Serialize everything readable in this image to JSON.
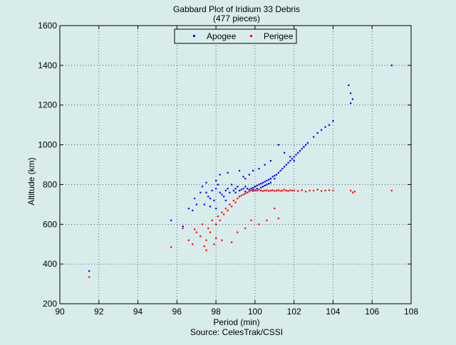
{
  "chart_data": {
    "type": "scatter",
    "title": "Gabbard Plot of Iridium 33 Debris",
    "subtitle": "(477 pieces)",
    "xlabel": "Period (min)",
    "ylabel": "Altitude (km)",
    "source": "Source: CelesTrak/CSSI",
    "xlim": [
      90,
      108
    ],
    "ylim": [
      200,
      1600
    ],
    "xticks": [
      90,
      92,
      94,
      96,
      98,
      100,
      102,
      104,
      106,
      108
    ],
    "yticks": [
      200,
      400,
      600,
      800,
      1000,
      1200,
      1400,
      1600
    ],
    "grid": true,
    "legend_position": "top-center",
    "series": [
      {
        "name": "Apogee",
        "color": "#0000ff",
        "x": [
          91.5,
          95.7,
          96.3,
          96.6,
          96.8,
          96.9,
          97.0,
          97.2,
          97.3,
          97.4,
          97.5,
          97.6,
          97.7,
          97.7,
          97.8,
          97.9,
          98.0,
          98.0,
          98.1,
          98.2,
          98.3,
          98.4,
          98.5,
          98.5,
          98.6,
          98.7,
          98.8,
          98.9,
          99.0,
          99.0,
          99.1,
          99.2,
          99.3,
          99.4,
          99.5,
          99.5,
          99.6,
          99.7,
          99.8,
          99.8,
          99.9,
          99.9,
          100.0,
          100.0,
          100.1,
          100.1,
          100.2,
          100.2,
          100.3,
          100.3,
          100.4,
          100.4,
          100.5,
          100.5,
          100.6,
          100.6,
          100.7,
          100.7,
          100.8,
          100.8,
          100.9,
          101.0,
          101.0,
          101.1,
          101.2,
          101.3,
          101.4,
          101.5,
          101.6,
          101.7,
          101.8,
          101.9,
          102.0,
          102.1,
          102.2,
          102.3,
          102.4,
          102.5,
          102.6,
          102.7,
          102.5,
          103.0,
          103.2,
          103.4,
          103.6,
          103.8,
          104.0,
          101.2,
          101.5,
          101.8,
          102.0,
          99.5,
          99.7,
          99.9,
          100.2,
          100.5,
          100.8,
          97.5,
          98.0,
          98.2,
          98.6,
          99.2,
          99.4,
          104.8,
          104.9,
          105.0,
          104.9,
          107.0
        ],
        "y": [
          365,
          620,
          590,
          680,
          670,
          730,
          700,
          760,
          790,
          700,
          760,
          740,
          730,
          690,
          770,
          720,
          780,
          680,
          800,
          760,
          750,
          740,
          770,
          720,
          780,
          760,
          800,
          770,
          780,
          760,
          790,
          770,
          775,
          780,
          790,
          765,
          780,
          775,
          780,
          770,
          785,
          775,
          790,
          770,
          795,
          780,
          800,
          775,
          805,
          785,
          810,
          790,
          815,
          795,
          820,
          800,
          825,
          805,
          830,
          810,
          840,
          845,
          830,
          850,
          860,
          870,
          880,
          890,
          900,
          910,
          920,
          930,
          940,
          950,
          960,
          970,
          980,
          990,
          1000,
          1010,
          990,
          1040,
          1060,
          1075,
          1090,
          1100,
          1120,
          1000,
          960,
          940,
          920,
          830,
          850,
          870,
          880,
          900,
          920,
          810,
          820,
          850,
          860,
          870,
          840,
          1300,
          1210,
          1230,
          1260,
          1400
        ]
      },
      {
        "name": "Perigee",
        "color": "#ff0000",
        "x": [
          91.5,
          95.7,
          96.3,
          96.6,
          96.8,
          97.0,
          97.2,
          97.3,
          97.5,
          97.6,
          97.7,
          97.8,
          98.0,
          98.1,
          98.2,
          98.3,
          98.4,
          98.5,
          98.6,
          98.7,
          98.8,
          98.9,
          99.0,
          99.1,
          99.2,
          99.3,
          99.4,
          99.5,
          99.6,
          99.7,
          99.8,
          99.9,
          100.0,
          100.1,
          100.2,
          100.3,
          100.4,
          100.5,
          100.6,
          100.7,
          100.8,
          100.9,
          101.0,
          101.1,
          101.2,
          101.3,
          101.4,
          101.5,
          101.6,
          101.7,
          101.8,
          101.9,
          102.0,
          102.2,
          102.4,
          102.6,
          102.8,
          103.0,
          103.2,
          103.4,
          103.6,
          103.8,
          104.0,
          104.9,
          105.0,
          105.1,
          107.0,
          97.5,
          97.9,
          98.3,
          98.8,
          99.1,
          99.5,
          99.8,
          100.2,
          100.6,
          101.0,
          101.2,
          98.0,
          97.4,
          96.9
        ],
        "y": [
          335,
          485,
          580,
          520,
          500,
          560,
          540,
          600,
          520,
          580,
          560,
          620,
          600,
          640,
          620,
          660,
          650,
          680,
          670,
          700,
          690,
          720,
          710,
          730,
          740,
          745,
          750,
          755,
          760,
          765,
          770,
          768,
          772,
          770,
          775,
          770,
          768,
          770,
          772,
          768,
          770,
          772,
          768,
          770,
          772,
          768,
          770,
          775,
          770,
          768,
          772,
          770,
          770,
          768,
          772,
          765,
          770,
          770,
          775,
          768,
          770,
          772,
          770,
          770,
          760,
          765,
          770,
          470,
          500,
          520,
          510,
          560,
          580,
          620,
          600,
          620,
          680,
          630,
          530,
          490,
          575
        ]
      }
    ]
  }
}
